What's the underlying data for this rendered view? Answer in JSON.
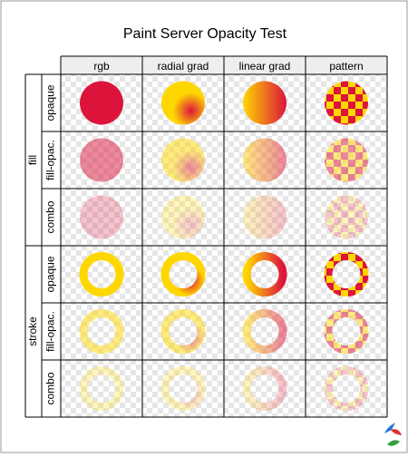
{
  "title": "Paint Server Opacity Test",
  "columns": [
    "rgb",
    "radial grad",
    "linear grad",
    "pattern"
  ],
  "groups": [
    {
      "label": "fill",
      "rows": [
        "opaque",
        "fill-opac.",
        "combo"
      ]
    },
    {
      "label": "stroke",
      "rows": [
        "opaque",
        "fill-opac.",
        "combo"
      ]
    }
  ],
  "opacity_levels": [
    1,
    0.5,
    0.25
  ],
  "colors": {
    "red": "#dc143c",
    "gold": "#ffd700",
    "checker_light": "#ffffff",
    "checker_dark": "#e6e6e6",
    "grid_line": "#000000",
    "header_fill": "#eeeeee",
    "logo_colors": [
      "#1e78dc",
      "#dc3232",
      "#32a040"
    ]
  },
  "logo_icon": "svg-logo-icon"
}
